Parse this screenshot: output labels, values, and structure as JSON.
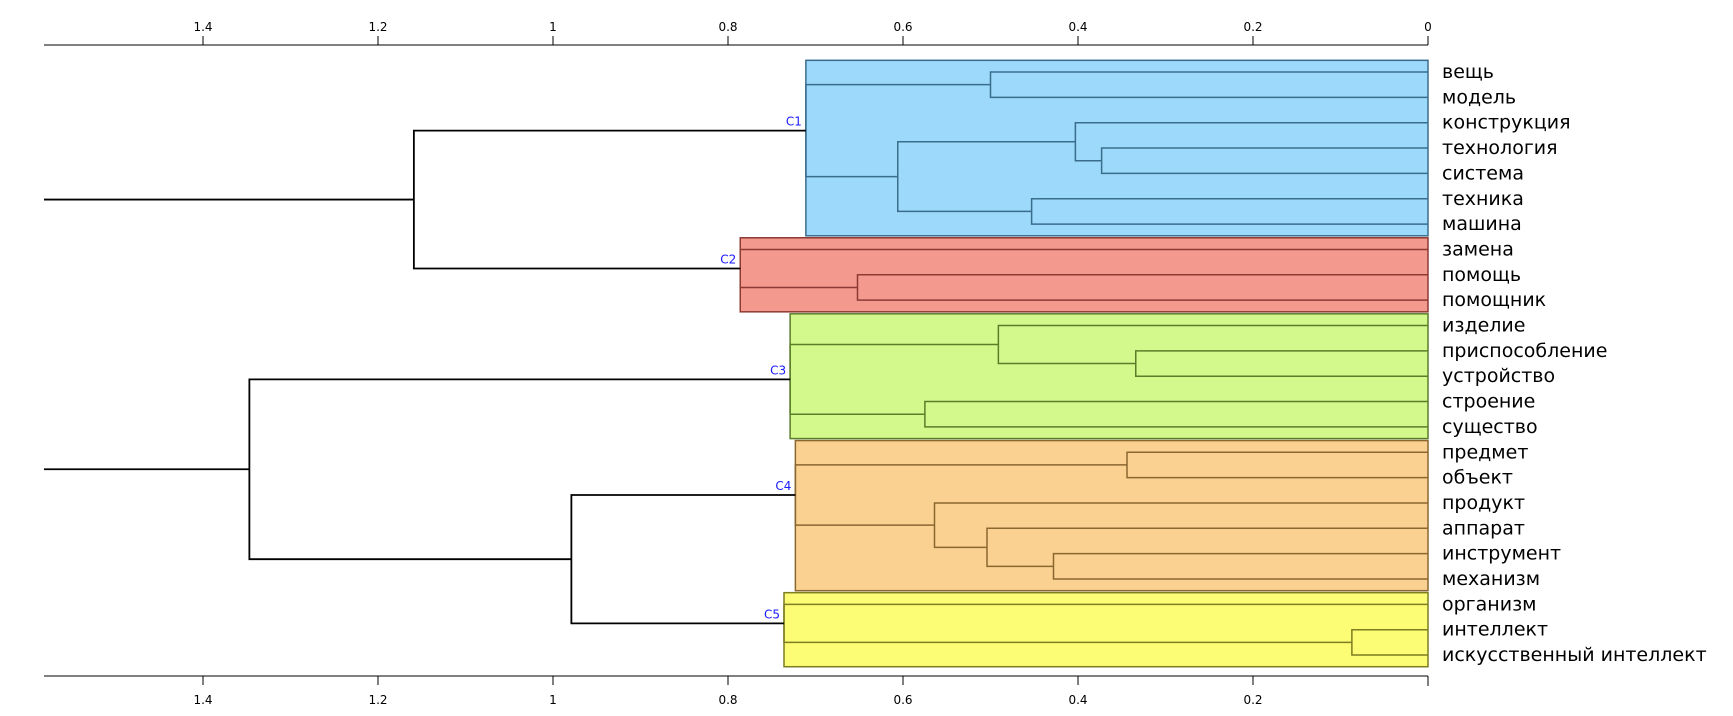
{
  "chart_data": {
    "type": "dendrogram",
    "orientation": "right-to-left",
    "xlim": [
      0,
      1.58
    ],
    "ticks_top": [
      1.4,
      1.2,
      1,
      0.8,
      0.6,
      0.4,
      0.2,
      0
    ],
    "ticks_bottom": [
      1.4,
      1.2,
      1,
      0.8,
      0.6,
      0.4,
      0.2
    ],
    "leaves": [
      "вещь",
      "модель",
      "конструкция",
      "технология",
      "система",
      "техника",
      "машина",
      "замена",
      "помощь",
      "помощник",
      "изделие",
      "приспособление",
      "устройство",
      "строение",
      "существо",
      "предмет",
      "объект",
      "продукт",
      "аппарат",
      "инструмент",
      "механизм",
      "организм",
      "интеллект",
      "искусственный  интеллект"
    ],
    "clusters": [
      {
        "name": "C1",
        "leaf_range": [
          0,
          6
        ],
        "fill": "#9dd9fb",
        "stroke": "#3a6d8c",
        "height": 0.711
      },
      {
        "name": "C2",
        "leaf_range": [
          7,
          9
        ],
        "fill": "#f4998d",
        "stroke": "#8c3a33",
        "height": 0.786
      },
      {
        "name": "C3",
        "leaf_range": [
          10,
          14
        ],
        "fill": "#d3f98d",
        "stroke": "#5b7d2a",
        "height": 0.729
      },
      {
        "name": "C4",
        "leaf_range": [
          15,
          20
        ],
        "fill": "#fad190",
        "stroke": "#8a6730",
        "height": 0.723
      },
      {
        "name": "C5",
        "leaf_range": [
          21,
          23
        ],
        "fill": "#fdfd75",
        "stroke": "#7d7d22",
        "height": 0.736
      }
    ],
    "merges": [
      {
        "id": "m1",
        "a": "L0",
        "b": "L1",
        "height": 0.5
      },
      {
        "id": "m2",
        "a": "L3",
        "b": "L4",
        "height": 0.373
      },
      {
        "id": "m3",
        "a": "L2",
        "b": "m2",
        "height": 0.403
      },
      {
        "id": "m4",
        "a": "L5",
        "b": "L6",
        "height": 0.453
      },
      {
        "id": "m5",
        "a": "m3",
        "b": "m4",
        "height": 0.606
      },
      {
        "id": "C1",
        "a": "m1",
        "b": "m5",
        "height": 0.711
      },
      {
        "id": "m6",
        "a": "L8",
        "b": "L9",
        "height": 0.652
      },
      {
        "id": "C2",
        "a": "L7",
        "b": "m6",
        "height": 0.786
      },
      {
        "id": "m7",
        "a": "L11",
        "b": "L12",
        "height": 0.334
      },
      {
        "id": "m8",
        "a": "L10",
        "b": "m7",
        "height": 0.491
      },
      {
        "id": "m9",
        "a": "L13",
        "b": "L14",
        "height": 0.575
      },
      {
        "id": "C3",
        "a": "m8",
        "b": "m9",
        "height": 0.729
      },
      {
        "id": "m10",
        "a": "L15",
        "b": "L16",
        "height": 0.344
      },
      {
        "id": "m11",
        "a": "L19",
        "b": "L20",
        "height": 0.428
      },
      {
        "id": "m12",
        "a": "L18",
        "b": "m11",
        "height": 0.504
      },
      {
        "id": "m13",
        "a": "L17",
        "b": "m12",
        "height": 0.564
      },
      {
        "id": "C4",
        "a": "m10",
        "b": "m13",
        "height": 0.723
      },
      {
        "id": "m14",
        "a": "L22",
        "b": "L23",
        "height": 0.087
      },
      {
        "id": "C5",
        "a": "L21",
        "b": "m14",
        "height": 0.736
      },
      {
        "id": "g12",
        "a": "C1",
        "b": "C2",
        "height": 1.159
      },
      {
        "id": "g45",
        "a": "C4",
        "b": "C5",
        "height": 0.979
      },
      {
        "id": "g345",
        "a": "C3",
        "b": "g45",
        "height": 1.347
      }
    ],
    "roots": [
      "g12",
      "g345"
    ]
  }
}
